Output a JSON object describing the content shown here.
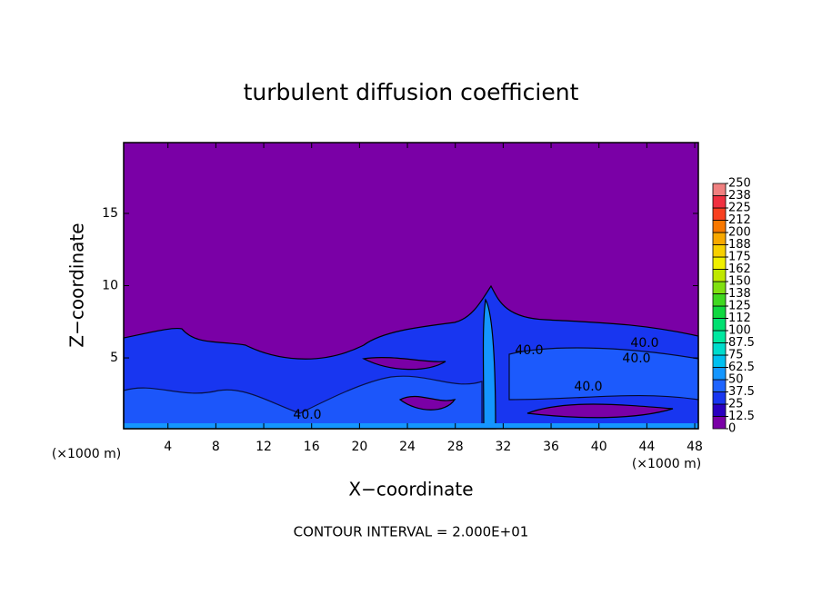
{
  "chart_data": {
    "type": "contour",
    "title": "turbulent diffusion coefficient",
    "xlabel": "X−coordinate",
    "ylabel": "Z−coordinate",
    "x_unit": "(×1000 m)",
    "x_unit_right": "(×1000 m)",
    "footnote": "CONTOUR INTERVAL = 2.000E+01",
    "xlim": [
      0.3,
      48.3
    ],
    "xticks": [
      4,
      8,
      12,
      16,
      20,
      24,
      28,
      32,
      36,
      40,
      44,
      48
    ],
    "ylim": [
      0.1,
      19.9
    ],
    "yticks": [
      5,
      10,
      15
    ],
    "contour_labels": [
      "40.0",
      "40.0",
      "40.0",
      "40.0",
      "40.0"
    ],
    "colorbar_ticks": [
      0,
      12.5,
      25,
      37.5,
      50,
      62.5,
      75,
      87.5,
      100,
      {
        "value": 112.5,
        "label": "112"
      },
      125,
      {
        "value": 137.5,
        "label": "138"
      },
      150,
      {
        "value": 162.5,
        "label": "162"
      },
      175,
      {
        "value": 187.5,
        "label": "188"
      },
      200,
      {
        "value": 212.5,
        "label": "212"
      },
      225,
      {
        "value": 237.5,
        "label": "238"
      },
      250
    ],
    "colorbar_colors": [
      "#7a00a6",
      "#2a00c0",
      "#1836f0",
      "#1e64ff",
      "#1496ff",
      "#00c0f0",
      "#00dccc",
      "#00e8a0",
      "#00e070",
      "#10d840",
      "#40d820",
      "#80e010",
      "#c0e800",
      "#f0f000",
      "#f8d000",
      "#f8a800",
      "#f87800",
      "#f84020",
      "#f03040",
      "#f08080"
    ]
  }
}
